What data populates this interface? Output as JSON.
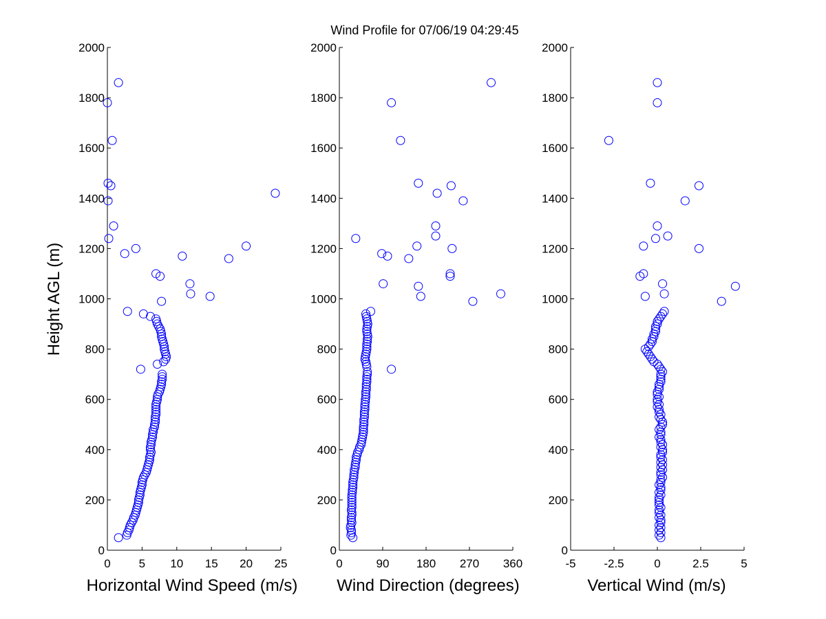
{
  "colors": {
    "marker": "#0000ff",
    "axis": "#000000",
    "background": "#ffffff"
  },
  "chart_data": [
    {
      "type": "scatter",
      "title": "Wind Profile for  07/06/19 04:29:45",
      "xlabel": "Horizontal Wind Speed (m/s)",
      "ylabel": "Height AGL (m)",
      "xlim": [
        0,
        25
      ],
      "ylim": [
        0,
        2000
      ],
      "xticks": [
        "0",
        "5",
        "10",
        "15",
        "20",
        "25"
      ],
      "yticks": [
        "0",
        "200",
        "400",
        "600",
        "800",
        "1000",
        "1200",
        "1400",
        "1600",
        "1800",
        "2000"
      ],
      "marker": "circle",
      "grid": false,
      "points": [
        [
          1.6,
          50
        ],
        [
          2.8,
          60
        ],
        [
          2.9,
          70
        ],
        [
          3.1,
          80
        ],
        [
          3.2,
          90
        ],
        [
          3.3,
          100
        ],
        [
          3.5,
          110
        ],
        [
          3.7,
          120
        ],
        [
          3.8,
          130
        ],
        [
          4.0,
          140
        ],
        [
          4.1,
          150
        ],
        [
          4.2,
          160
        ],
        [
          4.3,
          170
        ],
        [
          4.4,
          180
        ],
        [
          4.5,
          190
        ],
        [
          4.5,
          200
        ],
        [
          4.6,
          210
        ],
        [
          4.7,
          220
        ],
        [
          4.7,
          230
        ],
        [
          4.8,
          240
        ],
        [
          4.9,
          250
        ],
        [
          5.0,
          260
        ],
        [
          5.0,
          270
        ],
        [
          5.1,
          280
        ],
        [
          5.2,
          290
        ],
        [
          5.4,
          300
        ],
        [
          5.6,
          310
        ],
        [
          5.7,
          320
        ],
        [
          5.8,
          330
        ],
        [
          5.9,
          340
        ],
        [
          6.0,
          350
        ],
        [
          6.1,
          360
        ],
        [
          6.1,
          370
        ],
        [
          6.2,
          380
        ],
        [
          6.3,
          390
        ],
        [
          6.2,
          400
        ],
        [
          6.2,
          410
        ],
        [
          6.3,
          420
        ],
        [
          6.3,
          430
        ],
        [
          6.4,
          440
        ],
        [
          6.5,
          450
        ],
        [
          6.5,
          460
        ],
        [
          6.6,
          470
        ],
        [
          6.6,
          480
        ],
        [
          6.8,
          490
        ],
        [
          6.8,
          500
        ],
        [
          6.9,
          510
        ],
        [
          6.9,
          520
        ],
        [
          6.9,
          530
        ],
        [
          7.0,
          540
        ],
        [
          7.0,
          550
        ],
        [
          7.0,
          560
        ],
        [
          7.0,
          570
        ],
        [
          7.0,
          580
        ],
        [
          7.1,
          590
        ],
        [
          7.2,
          600
        ],
        [
          7.2,
          610
        ],
        [
          7.3,
          620
        ],
        [
          7.5,
          630
        ],
        [
          7.6,
          640
        ],
        [
          7.7,
          650
        ],
        [
          7.8,
          660
        ],
        [
          7.8,
          670
        ],
        [
          7.9,
          680
        ],
        [
          7.9,
          690
        ],
        [
          7.9,
          700
        ],
        [
          4.8,
          720
        ],
        [
          7.2,
          740
        ],
        [
          8.1,
          750
        ],
        [
          8.4,
          760
        ],
        [
          8.5,
          770
        ],
        [
          8.4,
          780
        ],
        [
          8.3,
          790
        ],
        [
          8.2,
          800
        ],
        [
          8.2,
          810
        ],
        [
          8.1,
          820
        ],
        [
          8.0,
          830
        ],
        [
          7.9,
          840
        ],
        [
          7.8,
          850
        ],
        [
          7.8,
          860
        ],
        [
          7.7,
          870
        ],
        [
          7.6,
          880
        ],
        [
          7.4,
          890
        ],
        [
          7.2,
          900
        ],
        [
          7.1,
          910
        ],
        [
          7.0,
          920
        ],
        [
          6.2,
          930
        ],
        [
          5.2,
          940
        ],
        [
          2.9,
          950
        ],
        [
          7.8,
          990
        ],
        [
          14.8,
          1010
        ],
        [
          12.0,
          1020
        ],
        [
          11.9,
          1060
        ],
        [
          7.6,
          1090
        ],
        [
          7.0,
          1100
        ],
        [
          17.5,
          1160
        ],
        [
          10.8,
          1170
        ],
        [
          2.5,
          1180
        ],
        [
          4.1,
          1200
        ],
        [
          20.0,
          1210
        ],
        [
          0.2,
          1240
        ],
        [
          0.9,
          1290
        ],
        [
          0.1,
          1390
        ],
        [
          24.2,
          1420
        ],
        [
          0.5,
          1450
        ],
        [
          0.1,
          1460
        ],
        [
          0.7,
          1630
        ],
        [
          0.0,
          1780
        ],
        [
          1.6,
          1860
        ]
      ]
    },
    {
      "type": "scatter",
      "xlabel": "Wind Direction (degrees)",
      "xlim": [
        0,
        360
      ],
      "ylim": [
        0,
        2000
      ],
      "xticks": [
        "0",
        "90",
        "180",
        "270",
        "360"
      ],
      "yticks": [
        "0",
        "200",
        "400",
        "600",
        "800",
        "1000",
        "1200",
        "1400",
        "1600",
        "1800",
        "2000"
      ],
      "marker": "circle",
      "grid": false,
      "points": [
        [
          28,
          50
        ],
        [
          24,
          60
        ],
        [
          25,
          70
        ],
        [
          25,
          80
        ],
        [
          23,
          90
        ],
        [
          24,
          100
        ],
        [
          26,
          110
        ],
        [
          25,
          120
        ],
        [
          25,
          130
        ],
        [
          26,
          140
        ],
        [
          26,
          150
        ],
        [
          25,
          160
        ],
        [
          26,
          170
        ],
        [
          26,
          180
        ],
        [
          26,
          190
        ],
        [
          26,
          200
        ],
        [
          26,
          210
        ],
        [
          26,
          220
        ],
        [
          27,
          230
        ],
        [
          27,
          240
        ],
        [
          28,
          250
        ],
        [
          28,
          260
        ],
        [
          28,
          270
        ],
        [
          29,
          280
        ],
        [
          30,
          290
        ],
        [
          30,
          300
        ],
        [
          31,
          310
        ],
        [
          31,
          320
        ],
        [
          33,
          330
        ],
        [
          33,
          340
        ],
        [
          34,
          350
        ],
        [
          35,
          360
        ],
        [
          35,
          370
        ],
        [
          37,
          380
        ],
        [
          38,
          390
        ],
        [
          41,
          400
        ],
        [
          42,
          410
        ],
        [
          45,
          420
        ],
        [
          46,
          430
        ],
        [
          47,
          440
        ],
        [
          48,
          450
        ],
        [
          49,
          460
        ],
        [
          50,
          470
        ],
        [
          50,
          480
        ],
        [
          50,
          490
        ],
        [
          51,
          500
        ],
        [
          51,
          510
        ],
        [
          51,
          520
        ],
        [
          52,
          530
        ],
        [
          52,
          540
        ],
        [
          52,
          550
        ],
        [
          53,
          560
        ],
        [
          53,
          570
        ],
        [
          53,
          580
        ],
        [
          54,
          590
        ],
        [
          54,
          600
        ],
        [
          55,
          610
        ],
        [
          55,
          620
        ],
        [
          55,
          630
        ],
        [
          56,
          640
        ],
        [
          56,
          650
        ],
        [
          56,
          660
        ],
        [
          57,
          670
        ],
        [
          57,
          680
        ],
        [
          57,
          690
        ],
        [
          58,
          700
        ],
        [
          58,
          710
        ],
        [
          108,
          720
        ],
        [
          57,
          730
        ],
        [
          56,
          740
        ],
        [
          55,
          750
        ],
        [
          53,
          760
        ],
        [
          54,
          770
        ],
        [
          55,
          780
        ],
        [
          56,
          790
        ],
        [
          57,
          800
        ],
        [
          57,
          810
        ],
        [
          57,
          820
        ],
        [
          58,
          830
        ],
        [
          58,
          840
        ],
        [
          59,
          850
        ],
        [
          58,
          860
        ],
        [
          57,
          870
        ],
        [
          57,
          880
        ],
        [
          58,
          890
        ],
        [
          59,
          900
        ],
        [
          58,
          910
        ],
        [
          57,
          920
        ],
        [
          56,
          930
        ],
        [
          55,
          940
        ],
        [
          65,
          950
        ],
        [
          277,
          990
        ],
        [
          169,
          1010
        ],
        [
          335,
          1020
        ],
        [
          164,
          1050
        ],
        [
          91,
          1060
        ],
        [
          230,
          1090
        ],
        [
          230,
          1100
        ],
        [
          144,
          1160
        ],
        [
          100,
          1170
        ],
        [
          88,
          1180
        ],
        [
          234,
          1200
        ],
        [
          161,
          1210
        ],
        [
          34,
          1240
        ],
        [
          200,
          1250
        ],
        [
          200,
          1290
        ],
        [
          257,
          1390
        ],
        [
          203,
          1420
        ],
        [
          232,
          1450
        ],
        [
          164,
          1460
        ],
        [
          127,
          1630
        ],
        [
          108,
          1780
        ],
        [
          315,
          1860
        ]
      ]
    },
    {
      "type": "scatter",
      "xlabel": "Vertical Wind (m/s)",
      "xlim": [
        -5,
        5
      ],
      "ylim": [
        0,
        2000
      ],
      "xticks": [
        "-5",
        "-2.5",
        "0",
        "2.5",
        "5"
      ],
      "yticks": [
        "0",
        "200",
        "400",
        "600",
        "800",
        "1000",
        "1200",
        "1400",
        "1600",
        "1800",
        "2000"
      ],
      "marker": "circle",
      "grid": false,
      "points": [
        [
          0.2,
          50
        ],
        [
          0.1,
          60
        ],
        [
          0.2,
          70
        ],
        [
          0.1,
          80
        ],
        [
          0.2,
          90
        ],
        [
          0.1,
          100
        ],
        [
          0.2,
          110
        ],
        [
          0.2,
          120
        ],
        [
          0.1,
          130
        ],
        [
          0.2,
          140
        ],
        [
          0.1,
          150
        ],
        [
          0.1,
          160
        ],
        [
          0.2,
          170
        ],
        [
          0.1,
          180
        ],
        [
          0.1,
          190
        ],
        [
          0.1,
          200
        ],
        [
          0.1,
          210
        ],
        [
          0.2,
          220
        ],
        [
          0.1,
          230
        ],
        [
          0.2,
          240
        ],
        [
          0.2,
          250
        ],
        [
          0.1,
          260
        ],
        [
          0.2,
          270
        ],
        [
          0.2,
          280
        ],
        [
          0.3,
          290
        ],
        [
          0.2,
          300
        ],
        [
          0.2,
          310
        ],
        [
          0.3,
          320
        ],
        [
          0.2,
          330
        ],
        [
          0.3,
          340
        ],
        [
          0.2,
          350
        ],
        [
          0.3,
          360
        ],
        [
          0.2,
          370
        ],
        [
          0.2,
          380
        ],
        [
          0.3,
          390
        ],
        [
          0.3,
          400
        ],
        [
          0.2,
          410
        ],
        [
          0.3,
          420
        ],
        [
          0.2,
          430
        ],
        [
          0.2,
          440
        ],
        [
          0.1,
          450
        ],
        [
          0.2,
          460
        ],
        [
          0.2,
          470
        ],
        [
          0.1,
          480
        ],
        [
          0.2,
          490
        ],
        [
          0.3,
          500
        ],
        [
          0.3,
          510
        ],
        [
          0.2,
          520
        ],
        [
          0.1,
          530
        ],
        [
          0.2,
          540
        ],
        [
          0.1,
          550
        ],
        [
          0.1,
          560
        ],
        [
          0.0,
          570
        ],
        [
          0.1,
          580
        ],
        [
          0.0,
          590
        ],
        [
          0.0,
          600
        ],
        [
          0.1,
          610
        ],
        [
          0.0,
          620
        ],
        [
          0.0,
          630
        ],
        [
          0.1,
          640
        ],
        [
          0.1,
          650
        ],
        [
          0.1,
          660
        ],
        [
          0.2,
          670
        ],
        [
          0.2,
          680
        ],
        [
          0.2,
          690
        ],
        [
          0.2,
          700
        ],
        [
          0.3,
          710
        ],
        [
          0.2,
          720
        ],
        [
          0.1,
          730
        ],
        [
          0.0,
          740
        ],
        [
          -0.2,
          750
        ],
        [
          -0.3,
          760
        ],
        [
          -0.4,
          770
        ],
        [
          -0.5,
          780
        ],
        [
          -0.6,
          790
        ],
        [
          -0.7,
          800
        ],
        [
          -0.5,
          810
        ],
        [
          -0.4,
          820
        ],
        [
          -0.3,
          830
        ],
        [
          -0.3,
          840
        ],
        [
          -0.2,
          850
        ],
        [
          -0.2,
          860
        ],
        [
          -0.1,
          870
        ],
        [
          -0.1,
          880
        ],
        [
          -0.1,
          890
        ],
        [
          0.0,
          900
        ],
        [
          0.0,
          910
        ],
        [
          0.1,
          920
        ],
        [
          0.2,
          930
        ],
        [
          0.3,
          940
        ],
        [
          0.4,
          950
        ],
        [
          3.7,
          990
        ],
        [
          -0.7,
          1010
        ],
        [
          0.4,
          1020
        ],
        [
          4.5,
          1050
        ],
        [
          0.3,
          1060
        ],
        [
          -1.0,
          1090
        ],
        [
          -0.8,
          1100
        ],
        [
          -0.8,
          1210
        ],
        [
          2.4,
          1200
        ],
        [
          -0.1,
          1240
        ],
        [
          0.6,
          1250
        ],
        [
          0.0,
          1290
        ],
        [
          1.6,
          1390
        ],
        [
          2.4,
          1450
        ],
        [
          -0.4,
          1460
        ],
        [
          -2.8,
          1630
        ],
        [
          0.0,
          1780
        ],
        [
          0.0,
          1860
        ]
      ]
    }
  ]
}
